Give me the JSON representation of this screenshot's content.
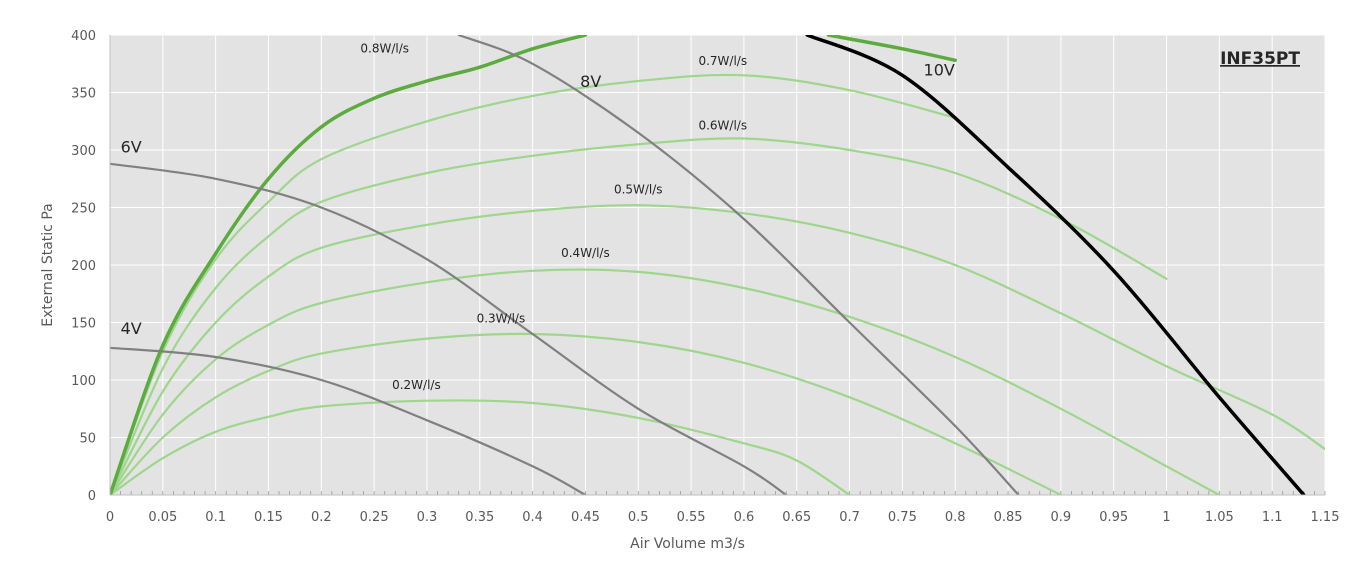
{
  "chart_data": {
    "type": "line",
    "title": "INF35PT",
    "xlabel": "Air Volume m3/s",
    "ylabel": "External Static Pa",
    "xlim": [
      0,
      1.15
    ],
    "ylim": [
      0,
      400
    ],
    "x_ticks": [
      "0",
      "0.05",
      "0.1",
      "0.15",
      "0.2",
      "0.25",
      "0.3",
      "0.35",
      "0.4",
      "0.45",
      "0.5",
      "0.55",
      "0.6",
      "0.65",
      "0.7",
      "0.75",
      "0.8",
      "0.85",
      "0.9",
      "0.95",
      "1",
      "1.05",
      "1.1",
      "1.15"
    ],
    "y_ticks": [
      "0",
      "50",
      "100",
      "150",
      "200",
      "250",
      "300",
      "350",
      "400"
    ],
    "grid": true,
    "colors": {
      "plot_background": "#e3e3e3",
      "voltage_curve": "#808080",
      "voltage_10v": "#000000",
      "sfp_curve": "#9ed68c",
      "sfp_max": "#5cab3f",
      "axis": "#bfbfbf",
      "text": "#262626"
    },
    "voltage_series": [
      {
        "name": "4V",
        "label_at": [
          0.01,
          140
        ],
        "points": [
          [
            0,
            128
          ],
          [
            0.1,
            120
          ],
          [
            0.2,
            100
          ],
          [
            0.3,
            65
          ],
          [
            0.4,
            25
          ],
          [
            0.45,
            0
          ]
        ]
      },
      {
        "name": "6V",
        "label_at": [
          0.01,
          298
        ],
        "points": [
          [
            0,
            288
          ],
          [
            0.1,
            275
          ],
          [
            0.2,
            250
          ],
          [
            0.3,
            205
          ],
          [
            0.4,
            140
          ],
          [
            0.5,
            75
          ],
          [
            0.6,
            25
          ],
          [
            0.64,
            0
          ]
        ]
      },
      {
        "name": "8V",
        "label_at": [
          0.445,
          355
        ],
        "points": [
          [
            0.33,
            400
          ],
          [
            0.4,
            375
          ],
          [
            0.5,
            315
          ],
          [
            0.6,
            240
          ],
          [
            0.7,
            150
          ],
          [
            0.8,
            60
          ],
          [
            0.86,
            0
          ]
        ]
      },
      {
        "name": "10V",
        "label_at": [
          0.77,
          365
        ],
        "points": [
          [
            0.66,
            400
          ],
          [
            0.75,
            365
          ],
          [
            0.85,
            285
          ],
          [
            0.95,
            195
          ],
          [
            1.05,
            85
          ],
          [
            1.13,
            0
          ]
        ]
      }
    ],
    "efficiency_series": [
      {
        "name": "0.2W/l/s",
        "label_at": [
          0.29,
          92
        ],
        "points": [
          [
            0,
            0
          ],
          [
            0.05,
            32
          ],
          [
            0.1,
            55
          ],
          [
            0.15,
            68
          ],
          [
            0.2,
            77
          ],
          [
            0.3,
            82
          ],
          [
            0.4,
            80
          ],
          [
            0.5,
            67
          ],
          [
            0.6,
            45
          ],
          [
            0.65,
            30
          ],
          [
            0.7,
            0
          ]
        ]
      },
      {
        "name": "0.3W/l/s",
        "label_at": [
          0.37,
          150
        ],
        "points": [
          [
            0,
            0
          ],
          [
            0.05,
            50
          ],
          [
            0.1,
            85
          ],
          [
            0.15,
            108
          ],
          [
            0.2,
            123
          ],
          [
            0.3,
            136
          ],
          [
            0.4,
            140
          ],
          [
            0.5,
            133
          ],
          [
            0.6,
            115
          ],
          [
            0.7,
            85
          ],
          [
            0.8,
            45
          ],
          [
            0.9,
            0
          ]
        ]
      },
      {
        "name": "0.4W/l/s",
        "label_at": [
          0.45,
          207
        ],
        "points": [
          [
            0,
            0
          ],
          [
            0.05,
            70
          ],
          [
            0.1,
            118
          ],
          [
            0.15,
            148
          ],
          [
            0.2,
            167
          ],
          [
            0.3,
            185
          ],
          [
            0.4,
            195
          ],
          [
            0.5,
            194
          ],
          [
            0.6,
            180
          ],
          [
            0.7,
            155
          ],
          [
            0.8,
            120
          ],
          [
            0.9,
            75
          ],
          [
            1.0,
            25
          ],
          [
            1.05,
            0
          ]
        ]
      },
      {
        "name": "0.5W/l/s",
        "label_at": [
          0.5,
          262
        ],
        "points": [
          [
            0,
            0
          ],
          [
            0.05,
            90
          ],
          [
            0.1,
            150
          ],
          [
            0.15,
            190
          ],
          [
            0.2,
            215
          ],
          [
            0.3,
            235
          ],
          [
            0.4,
            247
          ],
          [
            0.5,
            252
          ],
          [
            0.6,
            245
          ],
          [
            0.7,
            228
          ],
          [
            0.8,
            200
          ],
          [
            0.9,
            158
          ],
          [
            1.0,
            112
          ],
          [
            1.1,
            70
          ],
          [
            1.15,
            40
          ]
        ]
      },
      {
        "name": "0.6W/l/s",
        "label_at": [
          0.58,
          318
        ],
        "points": [
          [
            0,
            0
          ],
          [
            0.05,
            110
          ],
          [
            0.1,
            180
          ],
          [
            0.15,
            225
          ],
          [
            0.2,
            255
          ],
          [
            0.3,
            280
          ],
          [
            0.4,
            295
          ],
          [
            0.5,
            305
          ],
          [
            0.6,
            310
          ],
          [
            0.7,
            300
          ],
          [
            0.8,
            280
          ],
          [
            0.9,
            240
          ],
          [
            1.0,
            188
          ]
        ]
      },
      {
        "name": "0.7W/l/s",
        "label_at": [
          0.58,
          374
        ],
        "points": [
          [
            0,
            0
          ],
          [
            0.05,
            125
          ],
          [
            0.1,
            205
          ],
          [
            0.15,
            255
          ],
          [
            0.2,
            292
          ],
          [
            0.3,
            325
          ],
          [
            0.4,
            347
          ],
          [
            0.5,
            360
          ],
          [
            0.6,
            365
          ],
          [
            0.7,
            352
          ],
          [
            0.8,
            328
          ]
        ]
      },
      {
        "name": "0.8W/l/s",
        "label_at": [
          0.26,
          385
        ],
        "max": true,
        "points": [
          [
            0,
            0
          ],
          [
            0.05,
            130
          ],
          [
            0.1,
            210
          ],
          [
            0.15,
            275
          ],
          [
            0.2,
            320
          ],
          [
            0.25,
            345
          ],
          [
            0.3,
            360
          ],
          [
            0.35,
            372
          ],
          [
            0.4,
            388
          ],
          [
            0.45,
            400
          ]
        ]
      },
      {
        "name": "",
        "max": true,
        "points": [
          [
            0.68,
            400
          ],
          [
            0.75,
            388
          ],
          [
            0.8,
            378
          ]
        ]
      }
    ]
  }
}
